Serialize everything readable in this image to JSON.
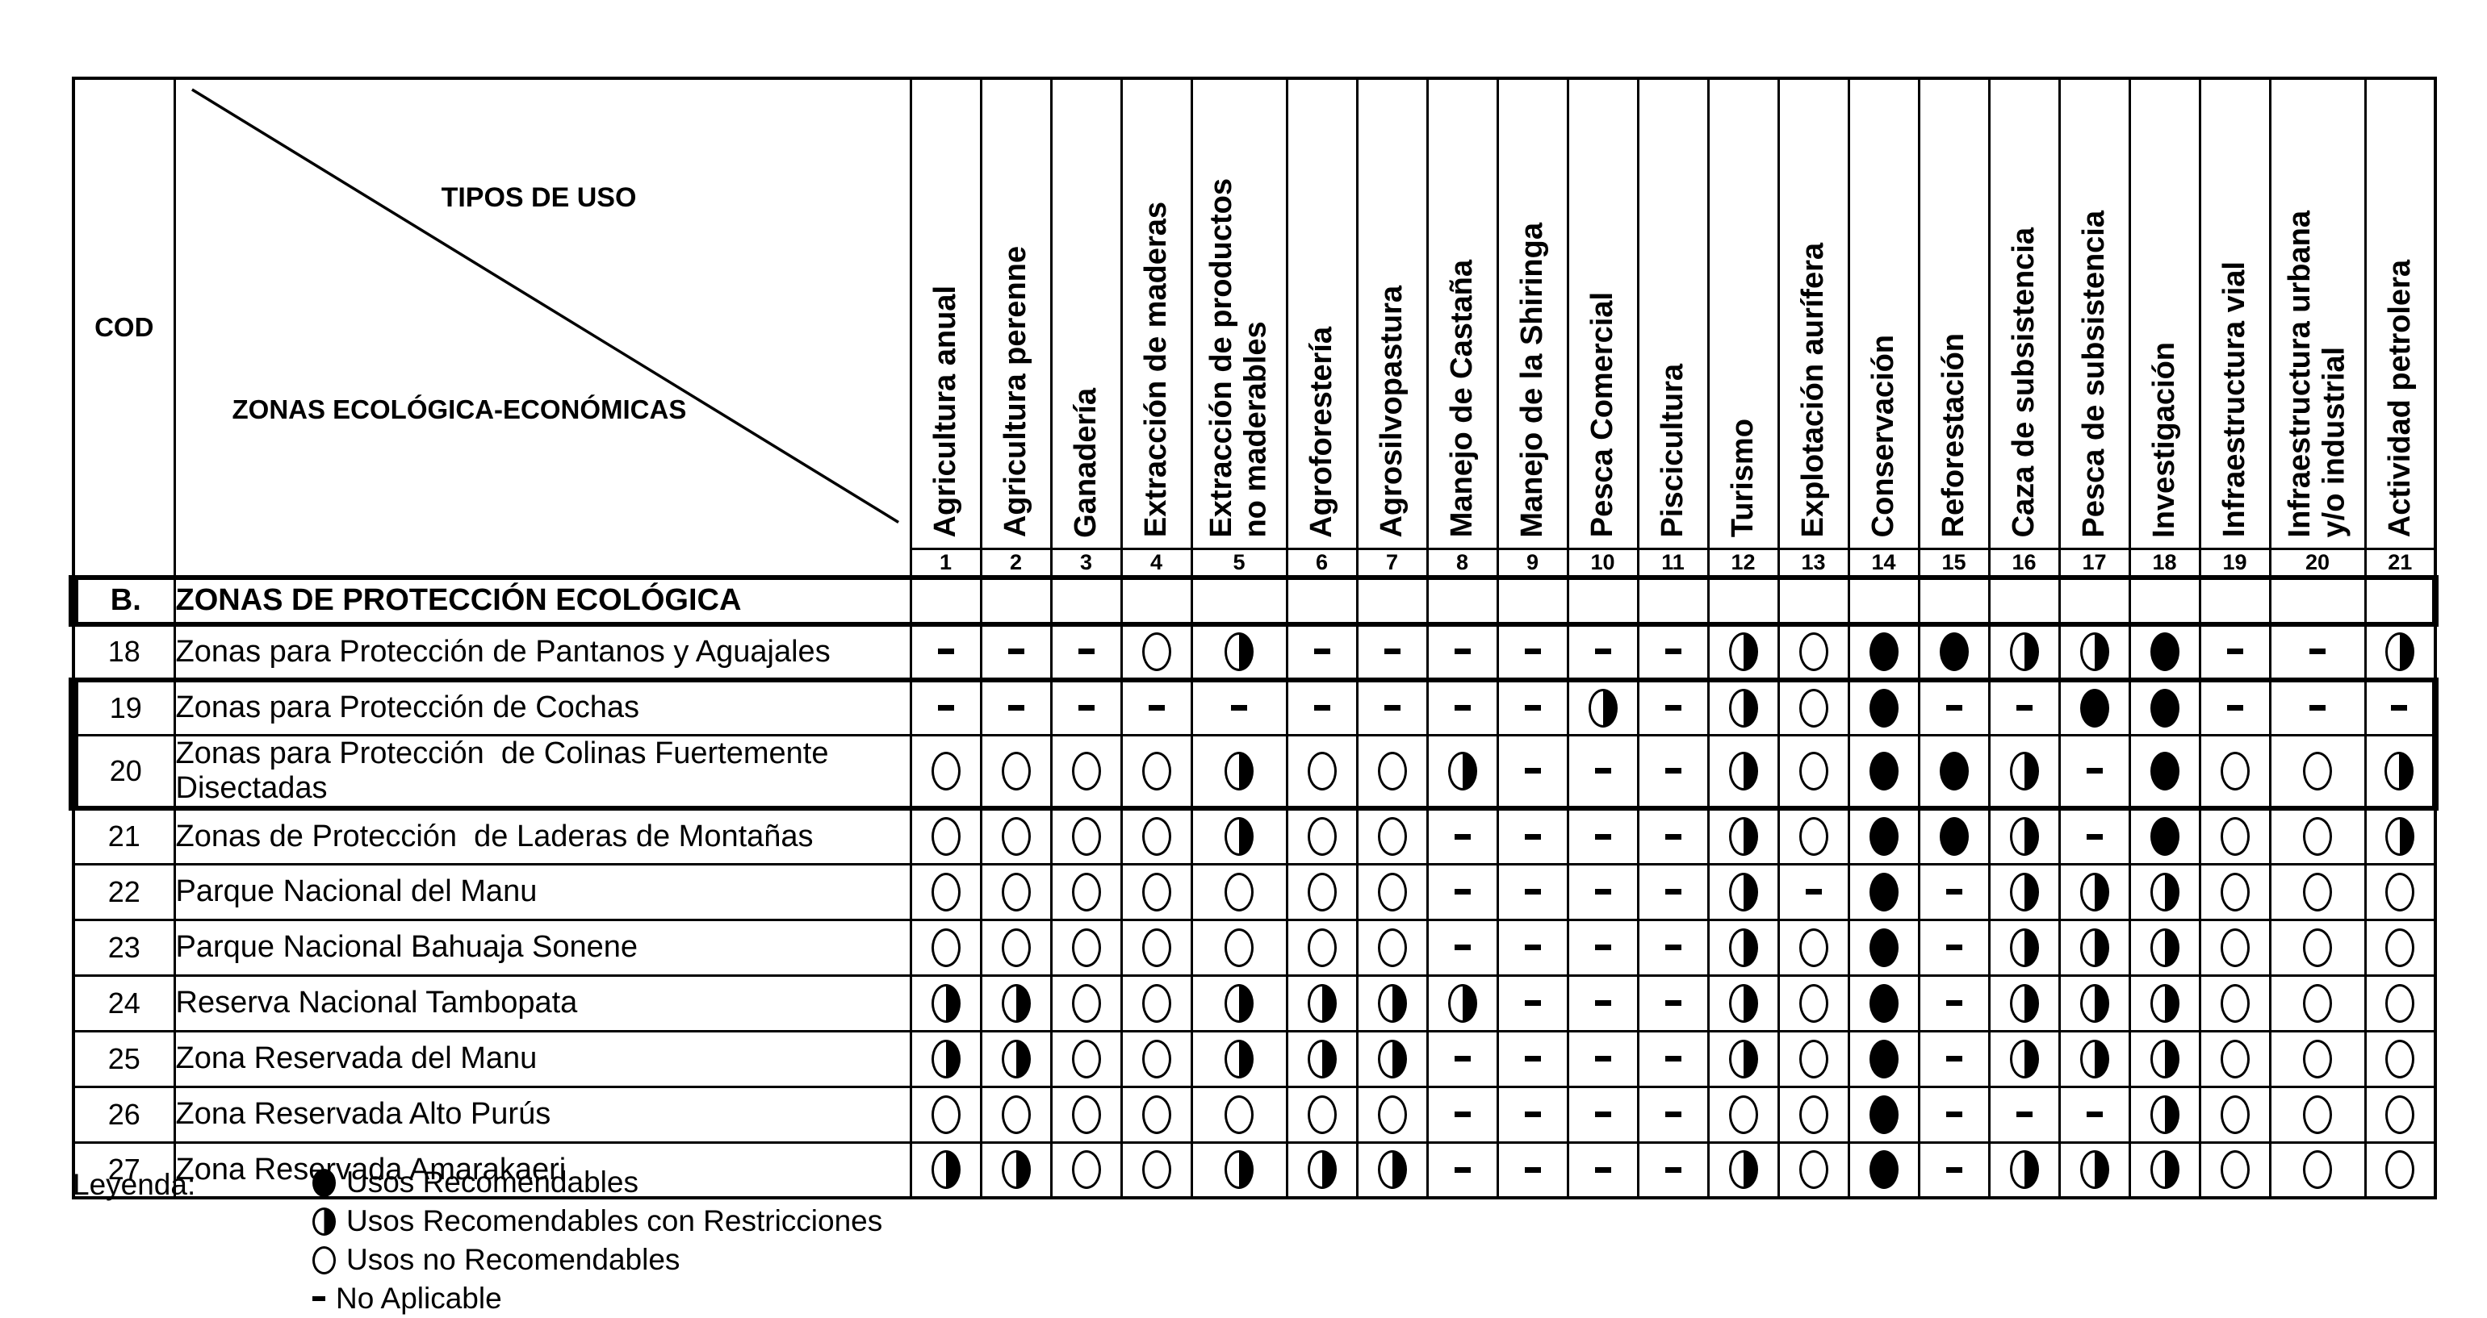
{
  "corner": {
    "cod": "COD",
    "tipos": "TIPOS DE USO",
    "zonas": "ZONAS ECOLÓGICA-ECONÓMICAS"
  },
  "use_types": [
    {
      "num": "1",
      "label": "Agricultura anual"
    },
    {
      "num": "2",
      "label": "Agricultura perenne"
    },
    {
      "num": "3",
      "label": "Ganadería"
    },
    {
      "num": "4",
      "label": "Extracción de maderas"
    },
    {
      "num": "5",
      "label": "Extracción de productos\nno maderables"
    },
    {
      "num": "6",
      "label": "Agroforestería"
    },
    {
      "num": "7",
      "label": "Agrosilvopastura"
    },
    {
      "num": "8",
      "label": "Manejo de Castaña"
    },
    {
      "num": "9",
      "label": "Manejo de la Shiringa"
    },
    {
      "num": "10",
      "label": "Pesca Comercial"
    },
    {
      "num": "11",
      "label": "Piscicultura"
    },
    {
      "num": "12",
      "label": "Turismo"
    },
    {
      "num": "13",
      "label": "Explotación aurífera"
    },
    {
      "num": "14",
      "label": "Conservación"
    },
    {
      "num": "15",
      "label": "Reforestación"
    },
    {
      "num": "16",
      "label": "Caza de subsistencia"
    },
    {
      "num": "17",
      "label": "Pesca de subsistencia"
    },
    {
      "num": "18",
      "label": "Investigación"
    },
    {
      "num": "19",
      "label": "Infraestructura vial"
    },
    {
      "num": "20",
      "label": "Infraestructura urbana\ny/o industrial"
    },
    {
      "num": "21",
      "label": "Actividad petrolera"
    }
  ],
  "section": {
    "code": "B.",
    "title": "ZONAS DE PROTECCIÓN ECOLÓGICA"
  },
  "rows": [
    {
      "cod": "18",
      "name": "Zonas para Protección de Pantanos y Aguajales",
      "uses": [
        "na",
        "na",
        "na",
        "nr",
        "rr",
        "na",
        "na",
        "na",
        "na",
        "na",
        "na",
        "rr",
        "nr",
        "r",
        "r",
        "rr",
        "rr",
        "r",
        "na",
        "na",
        "rr"
      ]
    },
    {
      "cod": "19",
      "name": "Zonas para Protección de Cochas",
      "uses": [
        "na",
        "na",
        "na",
        "na",
        "na",
        "na",
        "na",
        "na",
        "na",
        "rr",
        "na",
        "rr",
        "nr",
        "r",
        "na",
        "na",
        "r",
        "r",
        "na",
        "na",
        "na"
      ]
    },
    {
      "cod": "20",
      "name": "Zonas para Protección  de Colinas Fuertemente Disectadas",
      "uses": [
        "nr",
        "nr",
        "nr",
        "nr",
        "rr",
        "nr",
        "nr",
        "rr",
        "na",
        "na",
        "na",
        "rr",
        "nr",
        "r",
        "r",
        "rr",
        "na",
        "r",
        "nr",
        "nr",
        "rr"
      ]
    },
    {
      "cod": "21",
      "name": "Zonas de Protección  de Laderas de Montañas",
      "uses": [
        "nr",
        "nr",
        "nr",
        "nr",
        "rr",
        "nr",
        "nr",
        "na",
        "na",
        "na",
        "na",
        "rr",
        "nr",
        "r",
        "r",
        "rr",
        "na",
        "r",
        "nr",
        "nr",
        "rr"
      ]
    },
    {
      "cod": "22",
      "name": "Parque Nacional del Manu",
      "uses": [
        "nr",
        "nr",
        "nr",
        "nr",
        "nr",
        "nr",
        "nr",
        "na",
        "na",
        "na",
        "na",
        "rr",
        "na",
        "r",
        "na",
        "rr",
        "rr",
        "rr",
        "nr",
        "nr",
        "nr"
      ]
    },
    {
      "cod": "23",
      "name": "Parque Nacional Bahuaja Sonene",
      "uses": [
        "nr",
        "nr",
        "nr",
        "nr",
        "nr",
        "nr",
        "nr",
        "na",
        "na",
        "na",
        "na",
        "rr",
        "nr",
        "r",
        "na",
        "rr",
        "rr",
        "rr",
        "nr",
        "nr",
        "nr"
      ]
    },
    {
      "cod": "24",
      "name": "Reserva Nacional Tambopata",
      "uses": [
        "rr",
        "rr",
        "nr",
        "nr",
        "rr",
        "rr",
        "rr",
        "rr",
        "na",
        "na",
        "na",
        "rr",
        "nr",
        "r",
        "na",
        "rr",
        "rr",
        "rr",
        "nr",
        "nr",
        "nr"
      ]
    },
    {
      "cod": "25",
      "name": "Zona Reservada del Manu",
      "uses": [
        "rr",
        "rr",
        "nr",
        "nr",
        "rr",
        "rr",
        "rr",
        "na",
        "na",
        "na",
        "na",
        "rr",
        "nr",
        "r",
        "na",
        "rr",
        "rr",
        "rr",
        "nr",
        "nr",
        "nr"
      ]
    },
    {
      "cod": "26",
      "name": "Zona Reservada Alto Purús",
      "uses": [
        "nr",
        "nr",
        "nr",
        "nr",
        "nr",
        "nr",
        "nr",
        "na",
        "na",
        "na",
        "na",
        "nr",
        "nr",
        "r",
        "na",
        "na",
        "na",
        "rr",
        "nr",
        "nr",
        "nr"
      ]
    },
    {
      "cod": "27",
      "name": "Zona Reservada Amarakaeri",
      "uses": [
        "rr",
        "rr",
        "nr",
        "nr",
        "rr",
        "rr",
        "rr",
        "na",
        "na",
        "na",
        "na",
        "rr",
        "nr",
        "r",
        "na",
        "rr",
        "rr",
        "rr",
        "nr",
        "nr",
        "nr"
      ]
    }
  ],
  "legend": {
    "title": "Leyenda:",
    "items": [
      {
        "symbol": "r",
        "label": "Usos Recomendables"
      },
      {
        "symbol": "rr",
        "label": "Usos Recomendables con Restricciones"
      },
      {
        "symbol": "nr",
        "label": "Usos no Recomendables"
      },
      {
        "symbol": "na",
        "label": "No Aplicable"
      }
    ]
  }
}
